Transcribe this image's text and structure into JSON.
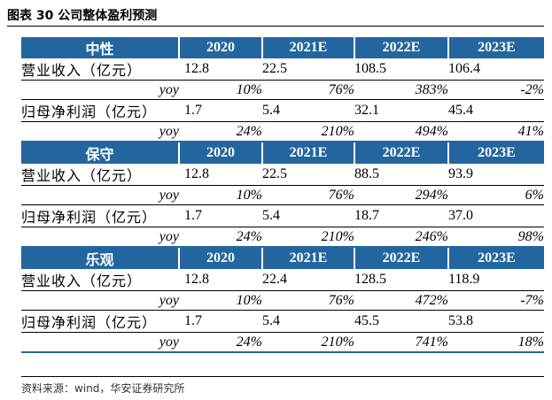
{
  "title": "图表 30  公司整体盈利预测",
  "columns": [
    "2020",
    "2021E",
    "2022E",
    "2023E"
  ],
  "scenarios": [
    {
      "name": "中性",
      "revenue_label": "营业收入（亿元）",
      "revenue": [
        "12.8",
        "22.5",
        "108.5",
        "106.4"
      ],
      "revenue_yoy_label": "yoy",
      "revenue_yoy": [
        "10%",
        "76%",
        "383%",
        "-2%"
      ],
      "profit_label": "归母净利润（亿元）",
      "profit": [
        "1.7",
        "5.4",
        "32.1",
        "45.4"
      ],
      "profit_yoy_label": "yoy",
      "profit_yoy": [
        "24%",
        "210%",
        "494%",
        "41%"
      ]
    },
    {
      "name": "保守",
      "revenue_label": "营业收入（亿元）",
      "revenue": [
        "12.8",
        "22.5",
        "88.5",
        "93.9"
      ],
      "revenue_yoy_label": "yoy",
      "revenue_yoy": [
        "10%",
        "76%",
        "294%",
        "6%"
      ],
      "profit_label": "归母净利润（亿元）",
      "profit": [
        "1.7",
        "5.4",
        "18.7",
        "37.0"
      ],
      "profit_yoy_label": "yoy",
      "profit_yoy": [
        "24%",
        "210%",
        "246%",
        "98%"
      ]
    },
    {
      "name": "乐观",
      "revenue_label": "营业收入（亿元）",
      "revenue": [
        "12.8",
        "22.4",
        "128.5",
        "118.9"
      ],
      "revenue_yoy_label": "yoy",
      "revenue_yoy": [
        "10%",
        "76%",
        "472%",
        "-7%"
      ],
      "profit_label": "归母净利润（亿元）",
      "profit": [
        "1.7",
        "5.4",
        "45.5",
        "53.8"
      ],
      "profit_yoy_label": "yoy",
      "profit_yoy": [
        "24%",
        "210%",
        "741%",
        "18%"
      ]
    }
  ],
  "source": "资料来源：wind，华安证券研究所"
}
